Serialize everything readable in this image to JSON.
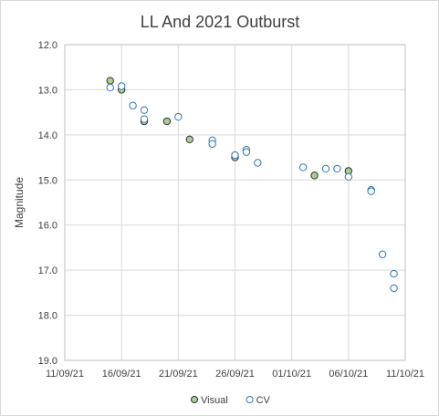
{
  "chart_data": {
    "type": "scatter",
    "title": "LL And  2021 Outburst",
    "xlabel": "",
    "ylabel": "Magnitude",
    "y_inverted": true,
    "ylim": [
      12.0,
      19.0
    ],
    "y_ticks": [
      "12.0",
      "13.0",
      "14.0",
      "15.0",
      "16.0",
      "17.0",
      "18.0",
      "19.0"
    ],
    "xlim": [
      "2021-09-11",
      "2021-10-11"
    ],
    "x_ticks": [
      "11/09/21",
      "16/09/21",
      "21/09/21",
      "26/09/21",
      "01/10/21",
      "06/10/21",
      "11/10/21"
    ],
    "grid": true,
    "legend_position": "bottom",
    "series": [
      {
        "name": "Visual",
        "color": "#a9d18e",
        "edge": "#2f2f2f",
        "points": [
          {
            "x": "2021-09-15",
            "y": 12.8
          },
          {
            "x": "2021-09-16",
            "y": 13.0
          },
          {
            "x": "2021-09-18",
            "y": 13.7
          },
          {
            "x": "2021-09-20",
            "y": 13.7
          },
          {
            "x": "2021-09-22",
            "y": 14.1
          },
          {
            "x": "2021-09-26",
            "y": 14.5
          },
          {
            "x": "2021-10-03",
            "y": 14.9
          },
          {
            "x": "2021-10-06",
            "y": 14.8
          }
        ]
      },
      {
        "name": "CV",
        "color": "#ffffff",
        "edge": "#2e75b6",
        "points": [
          {
            "x": "2021-09-15",
            "y": 12.95
          },
          {
            "x": "2021-09-16",
            "y": 12.92
          },
          {
            "x": "2021-09-17",
            "y": 13.35
          },
          {
            "x": "2021-09-18",
            "y": 13.45
          },
          {
            "x": "2021-09-18",
            "y": 13.65
          },
          {
            "x": "2021-09-21",
            "y": 13.6
          },
          {
            "x": "2021-09-24",
            "y": 14.12
          },
          {
            "x": "2021-09-24",
            "y": 14.2
          },
          {
            "x": "2021-09-26",
            "y": 14.45
          },
          {
            "x": "2021-09-27",
            "y": 14.33
          },
          {
            "x": "2021-09-27",
            "y": 14.38
          },
          {
            "x": "2021-09-28",
            "y": 14.62
          },
          {
            "x": "2021-10-02",
            "y": 14.72
          },
          {
            "x": "2021-10-04",
            "y": 14.75
          },
          {
            "x": "2021-10-05",
            "y": 14.75
          },
          {
            "x": "2021-10-06",
            "y": 14.93
          },
          {
            "x": "2021-10-08",
            "y": 15.22
          },
          {
            "x": "2021-10-08",
            "y": 15.25
          },
          {
            "x": "2021-10-09",
            "y": 16.65
          },
          {
            "x": "2021-10-10",
            "y": 17.08
          },
          {
            "x": "2021-10-10",
            "y": 17.4
          }
        ]
      }
    ]
  }
}
